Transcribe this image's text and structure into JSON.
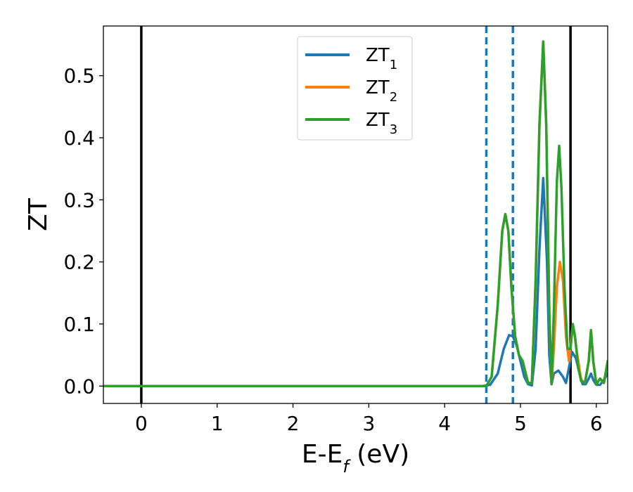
{
  "chart_data": {
    "type": "line",
    "xlabel": "E-E",
    "xlabel_sub": "f",
    "xlabel_unit": " (eV)",
    "ylabel": "ZT",
    "xlim": [
      -0.5,
      6.15
    ],
    "ylim": [
      -0.028,
      0.58
    ],
    "x_ticks": [
      0,
      1,
      2,
      3,
      4,
      5,
      6
    ],
    "x_tick_labels": [
      "0",
      "1",
      "2",
      "3",
      "4",
      "5",
      "6"
    ],
    "y_ticks": [
      0.0,
      0.1,
      0.2,
      0.3,
      0.4,
      0.5
    ],
    "y_tick_labels": [
      "0.0",
      "0.1",
      "0.2",
      "0.3",
      "0.4",
      "0.5"
    ],
    "grid": false,
    "legend_position": "top-center",
    "vertical_lines": [
      {
        "x": 0.0,
        "style": "solid",
        "color": "#000000"
      },
      {
        "x": 5.66,
        "style": "solid",
        "color": "#000000"
      },
      {
        "x": 4.55,
        "style": "dashed",
        "color": "#1f77b4"
      },
      {
        "x": 4.9,
        "style": "dashed",
        "color": "#1f77b4"
      }
    ],
    "series": [
      {
        "name": "ZT",
        "name_sub": "1",
        "color": "#1f77b4",
        "points": [
          [
            -0.5,
            0
          ],
          [
            4.5,
            0
          ],
          [
            4.6,
            0.002
          ],
          [
            4.7,
            0.02
          ],
          [
            4.78,
            0.06
          ],
          [
            4.85,
            0.082
          ],
          [
            4.9,
            0.08
          ],
          [
            4.95,
            0.065
          ],
          [
            5.0,
            0.04
          ],
          [
            5.05,
            0.015
          ],
          [
            5.1,
            0.003
          ],
          [
            5.15,
            0.001
          ],
          [
            5.2,
            0.06
          ],
          [
            5.25,
            0.22
          ],
          [
            5.3,
            0.335
          ],
          [
            5.35,
            0.2
          ],
          [
            5.38,
            0.05
          ],
          [
            5.41,
            0.003
          ],
          [
            5.44,
            0.02
          ],
          [
            5.5,
            0.025
          ],
          [
            5.56,
            0.015
          ],
          [
            5.6,
            0.005
          ],
          [
            5.64,
            0.03
          ],
          [
            5.68,
            0.055
          ],
          [
            5.73,
            0.045
          ],
          [
            5.78,
            0.02
          ],
          [
            5.82,
            0.003
          ],
          [
            5.86,
            0.003
          ],
          [
            5.9,
            0.012
          ],
          [
            5.93,
            0.02
          ],
          [
            5.96,
            0.01
          ],
          [
            6.0,
            0.002
          ],
          [
            6.05,
            0.002
          ],
          [
            6.1,
            0.01
          ],
          [
            6.15,
            0.02
          ]
        ]
      },
      {
        "name": "ZT",
        "name_sub": "2",
        "color": "#ff7f0e",
        "points": [
          [
            -0.5,
            0
          ],
          [
            4.55,
            0
          ],
          [
            4.62,
            0.015
          ],
          [
            4.7,
            0.13
          ],
          [
            4.76,
            0.25
          ],
          [
            4.8,
            0.277
          ],
          [
            4.84,
            0.25
          ],
          [
            4.88,
            0.16
          ],
          [
            4.93,
            0.08
          ],
          [
            4.98,
            0.05
          ],
          [
            5.03,
            0.04
          ],
          [
            5.07,
            0.02
          ],
          [
            5.1,
            0.005
          ],
          [
            5.15,
            0.005
          ],
          [
            5.2,
            0.17
          ],
          [
            5.25,
            0.42
          ],
          [
            5.3,
            0.555
          ],
          [
            5.34,
            0.42
          ],
          [
            5.38,
            0.12
          ],
          [
            5.41,
            0.003
          ],
          [
            5.44,
            0.06
          ],
          [
            5.48,
            0.16
          ],
          [
            5.52,
            0.2
          ],
          [
            5.56,
            0.17
          ],
          [
            5.6,
            0.08
          ],
          [
            5.64,
            0.04
          ],
          [
            5.68,
            0.09
          ],
          [
            5.71,
            0.085
          ],
          [
            5.75,
            0.05
          ],
          [
            5.8,
            0.01
          ],
          [
            5.85,
            0.005
          ],
          [
            5.9,
            0.04
          ],
          [
            5.93,
            0.09
          ],
          [
            5.96,
            0.04
          ],
          [
            6.0,
            0.003
          ],
          [
            6.05,
            0.012
          ],
          [
            6.1,
            0.005
          ],
          [
            6.15,
            0.04
          ]
        ]
      },
      {
        "name": "ZT",
        "name_sub": "3",
        "color": "#2ca02c",
        "points": [
          [
            -0.5,
            0
          ],
          [
            4.55,
            0
          ],
          [
            4.62,
            0.015
          ],
          [
            4.7,
            0.13
          ],
          [
            4.76,
            0.25
          ],
          [
            4.8,
            0.277
          ],
          [
            4.84,
            0.25
          ],
          [
            4.88,
            0.16
          ],
          [
            4.93,
            0.08
          ],
          [
            4.98,
            0.05
          ],
          [
            5.03,
            0.04
          ],
          [
            5.07,
            0.02
          ],
          [
            5.1,
            0.005
          ],
          [
            5.15,
            0.005
          ],
          [
            5.2,
            0.17
          ],
          [
            5.25,
            0.42
          ],
          [
            5.3,
            0.555
          ],
          [
            5.34,
            0.42
          ],
          [
            5.38,
            0.12
          ],
          [
            5.41,
            0.003
          ],
          [
            5.44,
            0.12
          ],
          [
            5.48,
            0.33
          ],
          [
            5.51,
            0.387
          ],
          [
            5.54,
            0.32
          ],
          [
            5.58,
            0.16
          ],
          [
            5.62,
            0.06
          ],
          [
            5.66,
            0.06
          ],
          [
            5.69,
            0.1
          ],
          [
            5.72,
            0.08
          ],
          [
            5.76,
            0.03
          ],
          [
            5.8,
            0.008
          ],
          [
            5.85,
            0.005
          ],
          [
            5.9,
            0.04
          ],
          [
            5.93,
            0.09
          ],
          [
            5.96,
            0.04
          ],
          [
            6.0,
            0.003
          ],
          [
            6.05,
            0.012
          ],
          [
            6.1,
            0.005
          ],
          [
            6.15,
            0.04
          ]
        ]
      }
    ]
  }
}
